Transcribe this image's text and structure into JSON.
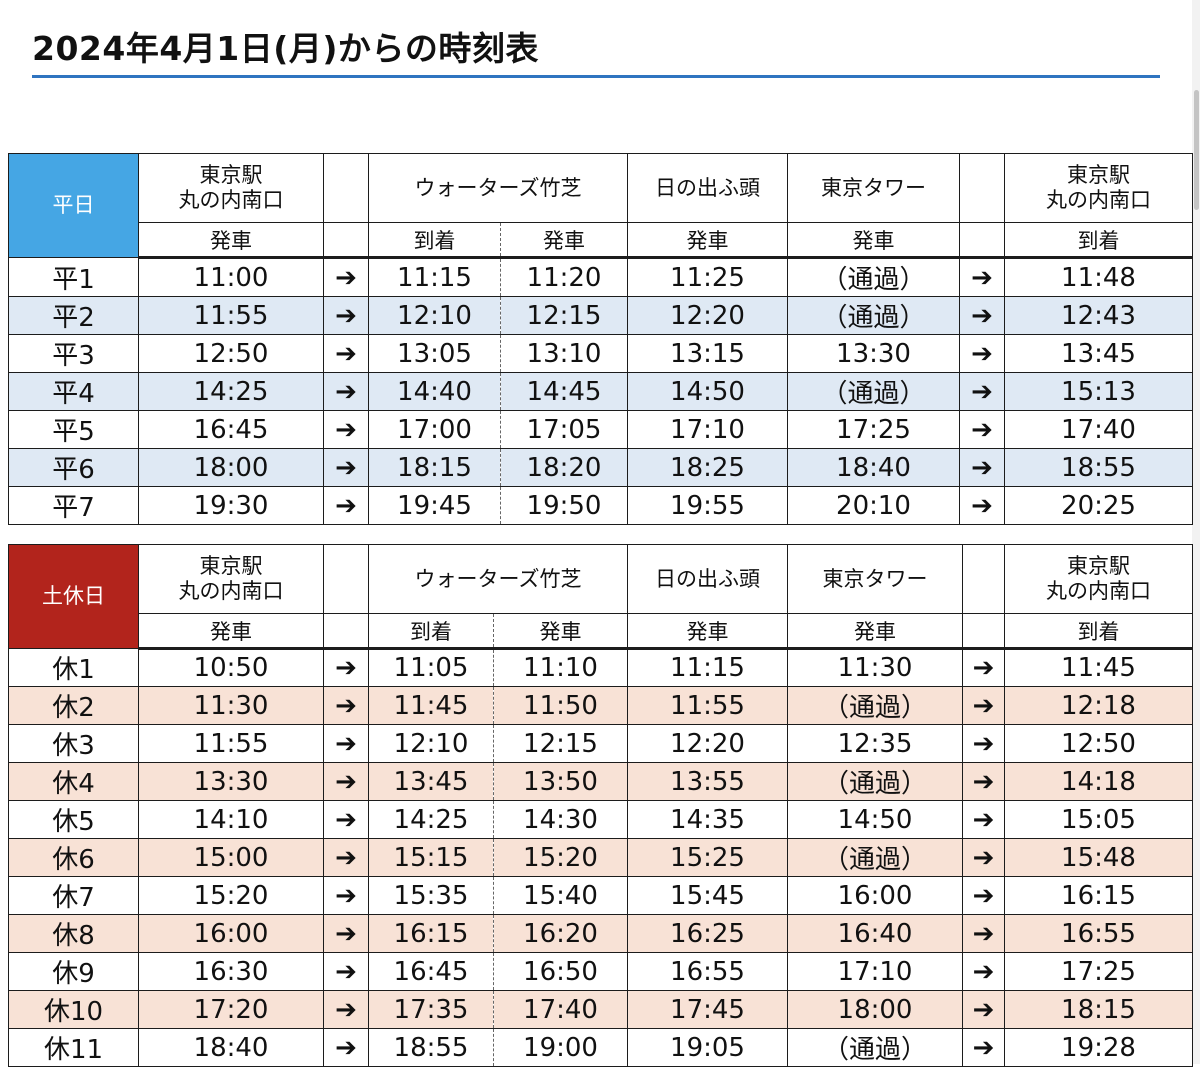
{
  "title": "2024年4月1日(月)からの時刻表",
  "headers": {
    "tokyo_station": [
      "東京駅",
      "丸の内南口"
    ],
    "waters_takeshiba": "ウォーターズ竹芝",
    "hinode": "日の出ふ頭",
    "tokyo_tower": "東京タワー",
    "depart": "発車",
    "arrive": "到着"
  },
  "arrow": "➔",
  "weekday": {
    "label": "平日",
    "rows": [
      {
        "bus": "平1",
        "tokyo_dep": "11:00",
        "takeshiba_arr": "11:15",
        "takeshiba_dep": "11:20",
        "hinode_dep": "11:25",
        "tower_dep": "（通過）",
        "tokyo_arr": "11:48"
      },
      {
        "bus": "平2",
        "tokyo_dep": "11:55",
        "takeshiba_arr": "12:10",
        "takeshiba_dep": "12:15",
        "hinode_dep": "12:20",
        "tower_dep": "（通過）",
        "tokyo_arr": "12:43"
      },
      {
        "bus": "平3",
        "tokyo_dep": "12:50",
        "takeshiba_arr": "13:05",
        "takeshiba_dep": "13:10",
        "hinode_dep": "13:15",
        "tower_dep": "13:30",
        "tokyo_arr": "13:45"
      },
      {
        "bus": "平4",
        "tokyo_dep": "14:25",
        "takeshiba_arr": "14:40",
        "takeshiba_dep": "14:45",
        "hinode_dep": "14:50",
        "tower_dep": "（通過）",
        "tokyo_arr": "15:13"
      },
      {
        "bus": "平5",
        "tokyo_dep": "16:45",
        "takeshiba_arr": "17:00",
        "takeshiba_dep": "17:05",
        "hinode_dep": "17:10",
        "tower_dep": "17:25",
        "tokyo_arr": "17:40"
      },
      {
        "bus": "平6",
        "tokyo_dep": "18:00",
        "takeshiba_arr": "18:15",
        "takeshiba_dep": "18:20",
        "hinode_dep": "18:25",
        "tower_dep": "18:40",
        "tokyo_arr": "18:55"
      },
      {
        "bus": "平7",
        "tokyo_dep": "19:30",
        "takeshiba_arr": "19:45",
        "takeshiba_dep": "19:50",
        "hinode_dep": "19:55",
        "tower_dep": "20:10",
        "tokyo_arr": "20:25"
      }
    ]
  },
  "holiday": {
    "label": "土休日",
    "rows": [
      {
        "bus": "休1",
        "tokyo_dep": "10:50",
        "takeshiba_arr": "11:05",
        "takeshiba_dep": "11:10",
        "hinode_dep": "11:15",
        "tower_dep": "11:30",
        "tokyo_arr": "11:45"
      },
      {
        "bus": "休2",
        "tokyo_dep": "11:30",
        "takeshiba_arr": "11:45",
        "takeshiba_dep": "11:50",
        "hinode_dep": "11:55",
        "tower_dep": "（通過）",
        "tokyo_arr": "12:18"
      },
      {
        "bus": "休3",
        "tokyo_dep": "11:55",
        "takeshiba_arr": "12:10",
        "takeshiba_dep": "12:15",
        "hinode_dep": "12:20",
        "tower_dep": "12:35",
        "tokyo_arr": "12:50"
      },
      {
        "bus": "休4",
        "tokyo_dep": "13:30",
        "takeshiba_arr": "13:45",
        "takeshiba_dep": "13:50",
        "hinode_dep": "13:55",
        "tower_dep": "（通過）",
        "tokyo_arr": "14:18"
      },
      {
        "bus": "休5",
        "tokyo_dep": "14:10",
        "takeshiba_arr": "14:25",
        "takeshiba_dep": "14:30",
        "hinode_dep": "14:35",
        "tower_dep": "14:50",
        "tokyo_arr": "15:05"
      },
      {
        "bus": "休6",
        "tokyo_dep": "15:00",
        "takeshiba_arr": "15:15",
        "takeshiba_dep": "15:20",
        "hinode_dep": "15:25",
        "tower_dep": "（通過）",
        "tokyo_arr": "15:48"
      },
      {
        "bus": "休7",
        "tokyo_dep": "15:20",
        "takeshiba_arr": "15:35",
        "takeshiba_dep": "15:40",
        "hinode_dep": "15:45",
        "tower_dep": "16:00",
        "tokyo_arr": "16:15"
      },
      {
        "bus": "休8",
        "tokyo_dep": "16:00",
        "takeshiba_arr": "16:15",
        "takeshiba_dep": "16:20",
        "hinode_dep": "16:25",
        "tower_dep": "16:40",
        "tokyo_arr": "16:55"
      },
      {
        "bus": "休9",
        "tokyo_dep": "16:30",
        "takeshiba_arr": "16:45",
        "takeshiba_dep": "16:50",
        "hinode_dep": "16:55",
        "tower_dep": "17:10",
        "tokyo_arr": "17:25"
      },
      {
        "bus": "休10",
        "tokyo_dep": "17:20",
        "takeshiba_arr": "17:35",
        "takeshiba_dep": "17:40",
        "hinode_dep": "17:45",
        "tower_dep": "18:00",
        "tokyo_arr": "18:15"
      },
      {
        "bus": "休11",
        "tokyo_dep": "18:40",
        "takeshiba_arr": "18:55",
        "takeshiba_dep": "19:00",
        "hinode_dep": "19:05",
        "tower_dep": "（通過）",
        "tokyo_arr": "19:28"
      }
    ]
  },
  "colors": {
    "title_rule": "#2f74c0",
    "weekday_header": "#45a6e4",
    "weekday_alt_row": "#dfe9f4",
    "holiday_header": "#b2241c",
    "holiday_alt_row": "#f8e2d6"
  }
}
